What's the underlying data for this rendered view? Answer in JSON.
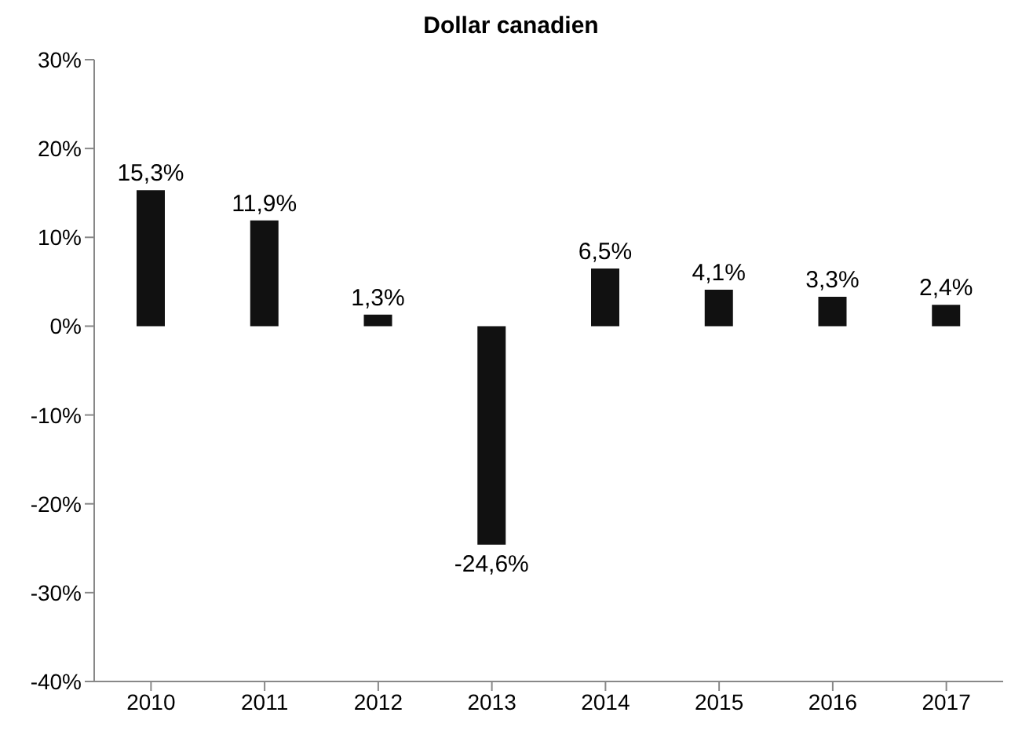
{
  "chart_data": {
    "type": "bar",
    "title": "Dollar canadien",
    "categories": [
      "2010",
      "2011",
      "2012",
      "2013",
      "2014",
      "2015",
      "2016",
      "2017"
    ],
    "values": [
      15.3,
      11.9,
      1.3,
      -24.6,
      6.5,
      4.1,
      3.3,
      2.4
    ],
    "value_labels": [
      "15,3%",
      "11,9%",
      "1,3%",
      "-24,6%",
      "6,5%",
      "4,1%",
      "3,3%",
      "2,4%"
    ],
    "color": "#111111",
    "ylim": [
      -40,
      30
    ],
    "yticks": [
      {
        "value": -40,
        "label": "-40%"
      },
      {
        "value": -30,
        "label": "-30%"
      },
      {
        "value": -20,
        "label": "-20%"
      },
      {
        "value": -10,
        "label": "-10%"
      },
      {
        "value": 0,
        "label": "0%"
      },
      {
        "value": 10,
        "label": "10%"
      },
      {
        "value": 20,
        "label": "20%"
      },
      {
        "value": 30,
        "label": "30%"
      }
    ],
    "grid": false
  }
}
